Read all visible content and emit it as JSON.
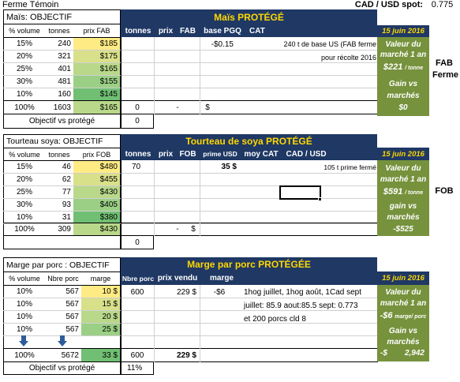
{
  "top": {
    "farm": "Ferme Témoin",
    "fx_label": "CAD / USD spot:",
    "fx_value": "0.775"
  },
  "colors": {
    "navy": "#1f3864",
    "gold": "#ffd700",
    "olive": "#76923c",
    "c1": "#ffeb84",
    "c2": "#d9e08a",
    "c3": "#b9d88a",
    "c4": "#9bcf85",
    "c5": "#70bf73"
  },
  "mais": {
    "title": "Maïs: OBJECTIF",
    "headers": [
      "% volume",
      "tonnes",
      "prix FAB"
    ],
    "rows": [
      [
        "15%",
        "240",
        "$185"
      ],
      [
        "20%",
        "321",
        "$175"
      ],
      [
        "25%",
        "401",
        "$165"
      ],
      [
        "30%",
        "481",
        "$155"
      ],
      [
        "10%",
        "160",
        "$145"
      ]
    ],
    "total": [
      "100%",
      "1603",
      "$165"
    ],
    "obj_label": "Objectif vs protégé",
    "obj_value": "0",
    "prot_title": "Maïs  PROTÉGÉ",
    "prot_headers": [
      "tonnes",
      "prix",
      "FAB",
      "base PGQ",
      "CAT"
    ],
    "basis": "-$0.15",
    "note1": "240 t de base US (FAB ferme",
    "note2": "pour récolte 2016",
    "total_tonnes": "0",
    "total_dash": "-",
    "total_dollar": "$",
    "date": "15 juin 2016",
    "value_lines": [
      "Valeur du",
      "marché 1 an"
    ],
    "value": "$221",
    "value_unit": "/ tonne",
    "gain_lines": [
      "Gain vs",
      "marchés"
    ],
    "gain": "$0",
    "side": [
      "FAB",
      "Ferme"
    ]
  },
  "soya": {
    "title": "Tourteau soya: OBJECTIF",
    "headers": [
      "% volume",
      "tonnes",
      "prix FOB"
    ],
    "rows": [
      [
        "15%",
        "46",
        "$480"
      ],
      [
        "20%",
        "62",
        "$455"
      ],
      [
        "25%",
        "77",
        "$430"
      ],
      [
        "30%",
        "93",
        "$405"
      ],
      [
        "10%",
        "31",
        "$380"
      ]
    ],
    "total": [
      "100%",
      "309",
      "$430"
    ],
    "obj_value": "0",
    "prot_title": "Tourteau de soya  PROTÉGÉ",
    "prot_headers": [
      "tonnes",
      "prix",
      "FOB",
      "prime USD",
      "moy CAT",
      "CAD / USD"
    ],
    "row1_tonnes": "70",
    "row1_prime": "35 $",
    "note": "105 t prime fermé",
    "total_dash": "-",
    "total_dollar": "$",
    "date": "15 juin 2016",
    "value_lines": [
      "Valeur du",
      "marché 1 an"
    ],
    "value": "$591",
    "value_unit": "/ tonne",
    "gain_lines": [
      "gain vs",
      "marchés"
    ],
    "gain": "-$525",
    "side": "FOB"
  },
  "porc": {
    "title": "Marge par porc : OBJECTIF",
    "headers": [
      "% volume",
      "Nbre porc",
      "marge"
    ],
    "rows": [
      [
        "10%",
        "567",
        "10 $"
      ],
      [
        "10%",
        "567",
        "15 $"
      ],
      [
        "10%",
        "567",
        "20 $"
      ],
      [
        "10%",
        "567",
        "25 $"
      ]
    ],
    "total": [
      "100%",
      "5672",
      "33 $"
    ],
    "obj_label": "Objectif vs protégé",
    "obj_value": "11%",
    "prot_title": "Marge par porc PROTÉGÉE",
    "prot_headers": [
      "Nbre porc",
      "prix vendu",
      "marge"
    ],
    "row1": [
      "600",
      "229 $",
      "-$6"
    ],
    "notes": [
      "1hog juillet, 1hog août, 1Cad sept",
      "juillet: 85.9  aout:85.5  sept: 0.773",
      "et 200 porcs cld 8"
    ],
    "total_prot": [
      "600",
      "229 $"
    ],
    "date": "15 juin 2016",
    "value_lines": [
      "Valeur du",
      "marché 1 an"
    ],
    "value": "-$6",
    "value_unit": "marge/ porc",
    "gain_lines": [
      "Gain vs",
      "marchés"
    ],
    "gain_prefix": "-$",
    "gain": "2,942"
  }
}
